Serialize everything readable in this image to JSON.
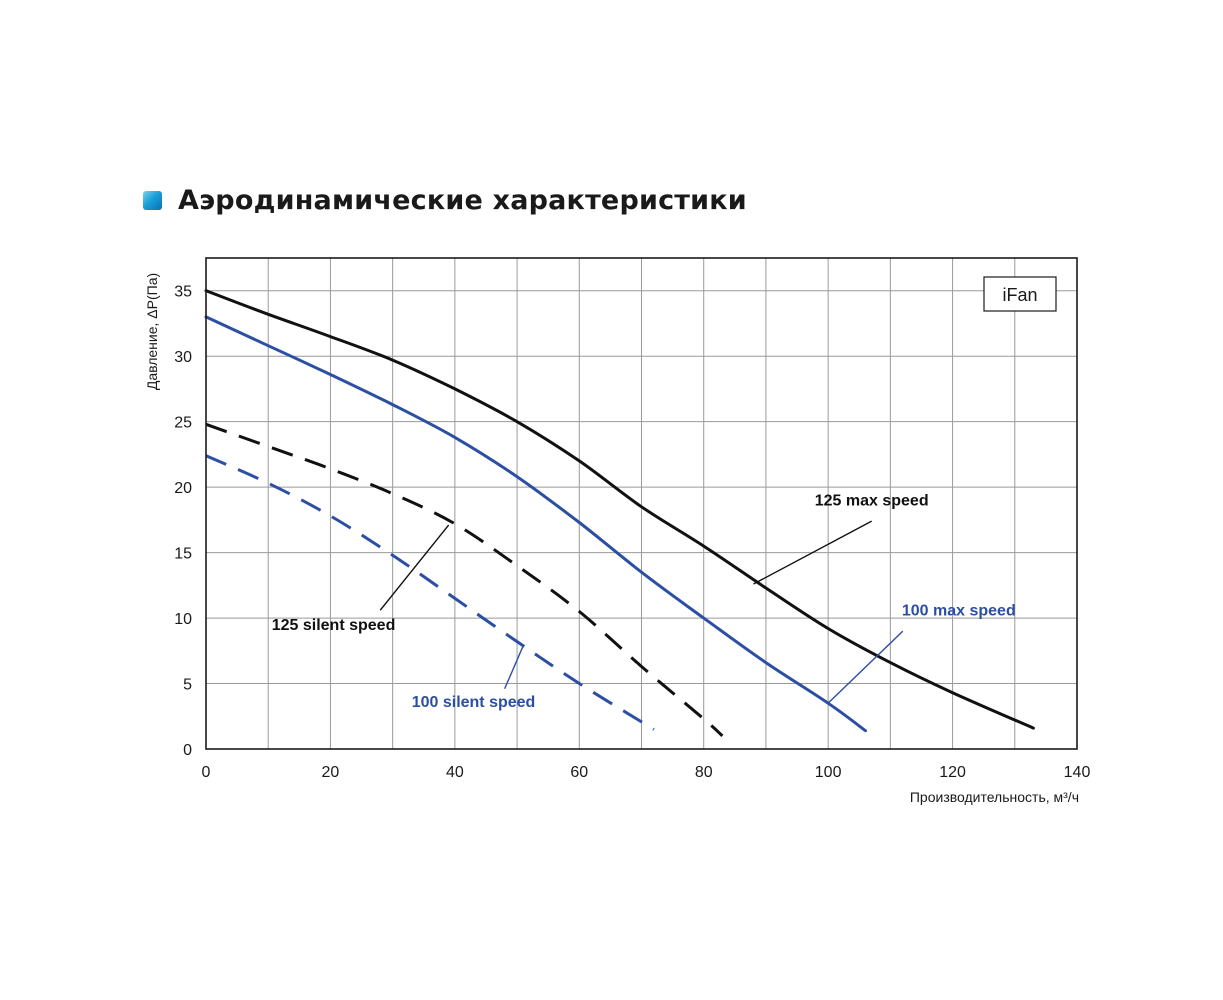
{
  "page": {
    "title": "Аэродинамические характеристики"
  },
  "chart_data": {
    "type": "line",
    "title": "",
    "xlabel": "Производительность, м³/ч",
    "ylabel": "Давление, ΔP(Па)",
    "xlim": [
      0,
      140
    ],
    "ylim": [
      0,
      37.5
    ],
    "x_ticks": [
      0,
      20,
      40,
      60,
      80,
      100,
      120,
      140
    ],
    "y_ticks": [
      0,
      5,
      10,
      15,
      20,
      25,
      30,
      35
    ],
    "grid": true,
    "legend": "none",
    "brand_label": "iFan",
    "colors": {
      "black": "#111111",
      "blue": "#2c4fa3",
      "grid": "#9a9a9a"
    },
    "series": [
      {
        "name": "125 max speed",
        "color": "#111111",
        "dashed": false,
        "points": [
          [
            0,
            35
          ],
          [
            10,
            33.2
          ],
          [
            20,
            31.5
          ],
          [
            30,
            29.7
          ],
          [
            40,
            27.5
          ],
          [
            50,
            25
          ],
          [
            60,
            22
          ],
          [
            70,
            18.5
          ],
          [
            80,
            15.5
          ],
          [
            90,
            12.3
          ],
          [
            100,
            9.2
          ],
          [
            110,
            6.6
          ],
          [
            120,
            4.3
          ],
          [
            133,
            1.6
          ]
        ]
      },
      {
        "name": "100 max speed",
        "color": "#2c4fa3",
        "dashed": false,
        "points": [
          [
            0,
            33
          ],
          [
            10,
            30.8
          ],
          [
            20,
            28.6
          ],
          [
            30,
            26.3
          ],
          [
            40,
            23.8
          ],
          [
            50,
            20.8
          ],
          [
            60,
            17.3
          ],
          [
            70,
            13.5
          ],
          [
            80,
            10
          ],
          [
            90,
            6.6
          ],
          [
            100,
            3.5
          ],
          [
            106,
            1.4
          ]
        ]
      },
      {
        "name": "125 silent speed",
        "color": "#111111",
        "dashed": true,
        "points": [
          [
            0,
            24.8
          ],
          [
            10,
            23.1
          ],
          [
            20,
            21.4
          ],
          [
            30,
            19.5
          ],
          [
            40,
            17.2
          ],
          [
            50,
            14
          ],
          [
            60,
            10.5
          ],
          [
            70,
            6.3
          ],
          [
            80,
            2.3
          ],
          [
            83,
            1.0
          ]
        ]
      },
      {
        "name": "100 silent speed",
        "color": "#2c4fa3",
        "dashed": true,
        "points": [
          [
            0,
            22.4
          ],
          [
            10,
            20.3
          ],
          [
            20,
            17.8
          ],
          [
            30,
            14.8
          ],
          [
            40,
            11.5
          ],
          [
            50,
            8.2
          ],
          [
            60,
            5
          ],
          [
            72,
            1.5
          ]
        ]
      }
    ],
    "annotations": [
      {
        "text": "125 max speed",
        "color": "#111111",
        "label_at": [
          107,
          18.6
        ],
        "arrow_to": [
          88,
          12.6
        ],
        "anchor": "middle",
        "line_from": [
          107,
          17.4
        ]
      },
      {
        "text": "100 max speed",
        "color": "#2c4fa3",
        "label_at": [
          121,
          10.2
        ],
        "arrow_to": [
          100,
          3.5
        ],
        "anchor": "middle",
        "line_from": [
          112,
          9.0
        ]
      },
      {
        "text": "125 silent speed",
        "color": "#111111",
        "label_at": [
          20.5,
          9.1
        ],
        "arrow_to": [
          39,
          17.1
        ],
        "anchor": "middle",
        "line_from": [
          28,
          10.6
        ]
      },
      {
        "text": "100 silent speed",
        "color": "#2c4fa3",
        "label_at": [
          43,
          3.2
        ],
        "arrow_to": [
          51,
          7.9
        ],
        "anchor": "middle",
        "line_from": [
          48,
          4.6
        ]
      }
    ]
  }
}
